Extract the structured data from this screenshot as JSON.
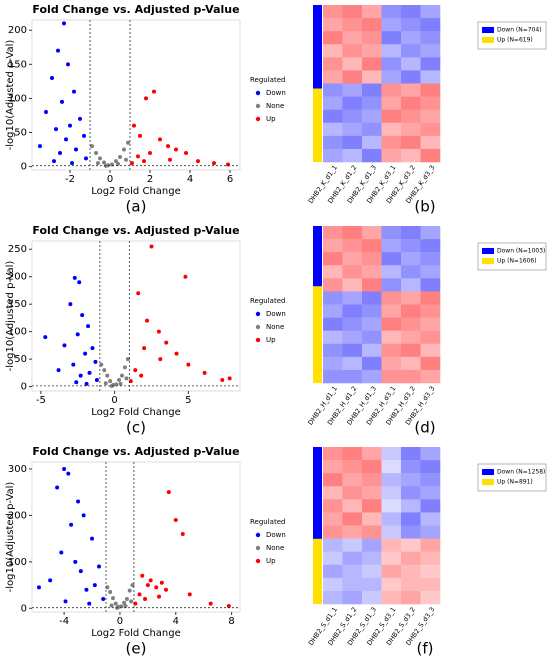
{
  "chart_data": [
    {
      "type": "volcano",
      "label": "(a)",
      "title": "Fold Change vs. Adjusted p-Value",
      "x_label": "Log2 Fold Change",
      "y_label": "-log10(Adjusted p-Val)",
      "xlim": [
        -3.9,
        6.5
      ],
      "xticks": [
        -2,
        0,
        2,
        4,
        6
      ],
      "ylim": [
        -5,
        215
      ],
      "yticks": [
        0,
        50,
        100,
        150,
        200
      ],
      "vlines": [
        -1,
        1
      ],
      "hline": 1.3,
      "legend_title": "Regulated",
      "series": [
        {
          "name": "Down",
          "color": "#0000ff",
          "x": [
            -2.3,
            -2.6,
            -2.1,
            -2.9,
            -1.8,
            -2.4,
            -3.2,
            -1.5,
            -2.0,
            -2.7,
            -1.3,
            -2.2,
            -3.5,
            -1.7,
            -2.5,
            -1.2,
            -2.8,
            -1.9
          ],
          "y": [
            210,
            170,
            150,
            130,
            110,
            95,
            80,
            70,
            60,
            55,
            45,
            40,
            30,
            25,
            20,
            12,
            8,
            5
          ]
        },
        {
          "name": "None",
          "color": "#808080",
          "x": [
            -0.9,
            -0.7,
            -0.5,
            -0.3,
            -0.1,
            0.1,
            0.3,
            0.5,
            0.7,
            0.9,
            -0.6,
            0.4,
            -0.2,
            0.8
          ],
          "y": [
            30,
            20,
            12,
            6,
            2,
            3,
            8,
            14,
            25,
            35,
            5,
            4,
            1,
            10
          ]
        },
        {
          "name": "Up",
          "color": "#ff0000",
          "x": [
            1.2,
            1.5,
            1.8,
            2.2,
            2.5,
            2.9,
            3.3,
            3.8,
            4.4,
            5.2,
            5.9,
            1.4,
            2.0,
            3.0,
            1.1,
            1.7
          ],
          "y": [
            60,
            45,
            100,
            110,
            40,
            30,
            25,
            20,
            8,
            5,
            3,
            15,
            20,
            10,
            5,
            8
          ]
        }
      ]
    },
    {
      "type": "heatmap",
      "label": "(b)",
      "columns": [
        "DHB2_K_d1_1",
        "DHB2_K_d1_2",
        "DHB2_K_d1_3",
        "DHB2_K_d3_1",
        "DHB2_K_d3_2",
        "DHB2_K_d3_3"
      ],
      "zlim": [
        -1,
        1
      ],
      "colors": [
        "#4a4aff",
        "#ffffff",
        "#ff4a4a"
      ],
      "groups": [
        {
          "name": "Down (N=704)",
          "color": "#0000ff",
          "n": 704
        },
        {
          "name": "Up (N=619)",
          "color": "#ffe000",
          "n": 619
        }
      ],
      "matrix": [
        [
          0.6,
          0.7,
          0.5,
          -0.6,
          -0.7,
          -0.5
        ],
        [
          0.5,
          0.6,
          0.7,
          -0.5,
          -0.6,
          -0.7
        ],
        [
          0.7,
          0.5,
          0.6,
          -0.7,
          -0.5,
          -0.6
        ],
        [
          0.4,
          0.6,
          0.5,
          -0.4,
          -0.6,
          -0.5
        ],
        [
          0.6,
          0.4,
          0.7,
          -0.6,
          -0.4,
          -0.7
        ],
        [
          0.5,
          0.7,
          0.4,
          -0.5,
          -0.7,
          -0.4
        ],
        [
          -0.6,
          -0.5,
          -0.7,
          0.6,
          0.5,
          0.7
        ],
        [
          -0.5,
          -0.7,
          -0.6,
          0.5,
          0.7,
          0.6
        ],
        [
          -0.7,
          -0.6,
          -0.5,
          0.7,
          0.6,
          0.5
        ],
        [
          -0.4,
          -0.5,
          -0.6,
          0.4,
          0.5,
          0.6
        ],
        [
          -0.6,
          -0.7,
          -0.4,
          0.6,
          0.7,
          0.4
        ],
        [
          -0.5,
          -0.4,
          -0.7,
          0.5,
          0.4,
          0.7
        ]
      ]
    },
    {
      "type": "volcano",
      "label": "(c)",
      "title": "Fold Change vs. Adjusted p-Value",
      "x_label": "Log2 Fold Change",
      "y_label": "-log10(Adjusted p-Val)",
      "xlim": [
        -5.6,
        8.5
      ],
      "xticks": [
        -5,
        0,
        5
      ],
      "ylim": [
        -8,
        265
      ],
      "yticks": [
        0,
        50,
        100,
        150,
        200,
        250
      ],
      "vlines": [
        -1,
        1
      ],
      "hline": 1.3,
      "legend_title": "Regulated",
      "series": [
        {
          "name": "Down",
          "color": "#0000ff",
          "x": [
            -2.7,
            -2.4,
            -3.0,
            -2.2,
            -1.8,
            -2.5,
            -3.4,
            -1.5,
            -2.0,
            -4.7,
            -1.3,
            -2.8,
            -3.8,
            -1.7,
            -2.3,
            -1.2,
            -2.6,
            -1.9
          ],
          "y": [
            198,
            190,
            150,
            130,
            110,
            95,
            75,
            70,
            60,
            90,
            45,
            40,
            30,
            25,
            20,
            12,
            8,
            5
          ]
        },
        {
          "name": "None",
          "color": "#808080",
          "x": [
            -0.9,
            -0.7,
            -0.5,
            -0.3,
            -0.1,
            0.1,
            0.3,
            0.5,
            0.7,
            0.9,
            -0.6,
            0.4,
            -0.2,
            0.8
          ],
          "y": [
            40,
            30,
            20,
            10,
            3,
            4,
            12,
            20,
            35,
            50,
            6,
            5,
            1,
            15
          ]
        },
        {
          "name": "Up",
          "color": "#ff0000",
          "x": [
            2.5,
            4.8,
            1.6,
            2.2,
            3.0,
            3.5,
            4.2,
            5.0,
            6.1,
            7.3,
            7.8,
            1.4,
            2.0,
            3.1,
            1.1,
            1.8
          ],
          "y": [
            255,
            200,
            170,
            120,
            100,
            80,
            60,
            40,
            25,
            12,
            15,
            30,
            70,
            50,
            10,
            20
          ]
        }
      ]
    },
    {
      "type": "heatmap",
      "label": "(d)",
      "columns": [
        "DHB2_H_d1_1",
        "DHB2_H_d1_2",
        "DHB2_H_d1_3",
        "DHB2_H_d3_1",
        "DHB2_H_d3_2",
        "DHB2_H_d3_3"
      ],
      "zlim": [
        -1,
        1
      ],
      "colors": [
        "#4a4aff",
        "#ffffff",
        "#ff4a4a"
      ],
      "groups": [
        {
          "name": "Down (N=1003)",
          "color": "#0000ff",
          "n": 1003
        },
        {
          "name": "Up (N=1606)",
          "color": "#ffe000",
          "n": 1606
        }
      ],
      "matrix": [
        [
          0.6,
          0.7,
          0.5,
          -0.6,
          -0.7,
          -0.5
        ],
        [
          0.5,
          0.6,
          0.7,
          -0.5,
          -0.6,
          -0.7
        ],
        [
          0.7,
          0.5,
          0.6,
          -0.7,
          -0.5,
          -0.6
        ],
        [
          0.4,
          0.6,
          0.5,
          -0.4,
          -0.6,
          -0.5
        ],
        [
          0.6,
          0.4,
          0.7,
          -0.6,
          -0.4,
          -0.7
        ],
        [
          -0.6,
          -0.5,
          -0.7,
          0.6,
          0.5,
          0.7
        ],
        [
          -0.5,
          -0.7,
          -0.6,
          0.5,
          0.7,
          0.6
        ],
        [
          -0.7,
          -0.6,
          -0.5,
          0.7,
          0.6,
          0.5
        ],
        [
          -0.4,
          -0.5,
          -0.6,
          0.4,
          0.5,
          0.6
        ],
        [
          -0.6,
          -0.7,
          -0.4,
          0.6,
          0.7,
          0.4
        ],
        [
          -0.5,
          -0.4,
          -0.7,
          0.5,
          0.4,
          0.7
        ],
        [
          -0.6,
          -0.6,
          -0.5,
          0.6,
          0.6,
          0.5
        ]
      ]
    },
    {
      "type": "volcano",
      "label": "(e)",
      "title": "Fold Change vs. Adjusted p-Value",
      "x_label": "Log2 Fold Change",
      "y_label": "-log10(Adjusted p-Val)",
      "xlim": [
        -6.3,
        8.6
      ],
      "xticks": [
        -4,
        0,
        4,
        8
      ],
      "ylim": [
        -8,
        315
      ],
      "yticks": [
        0,
        100,
        200,
        300
      ],
      "vlines": [
        -1,
        1
      ],
      "hline": 1.3,
      "legend_title": "Regulated",
      "series": [
        {
          "name": "Down",
          "color": "#0000ff",
          "x": [
            -4.0,
            -3.7,
            -4.5,
            -3.0,
            -2.6,
            -3.5,
            -5.8,
            -2.0,
            -4.2,
            -3.2,
            -1.5,
            -2.8,
            -5.0,
            -1.8,
            -2.4,
            -1.2,
            -3.9,
            -2.2
          ],
          "y": [
            300,
            290,
            260,
            230,
            200,
            180,
            45,
            150,
            120,
            100,
            90,
            80,
            60,
            50,
            40,
            20,
            15,
            10
          ]
        },
        {
          "name": "None",
          "color": "#808080",
          "x": [
            -0.9,
            -0.7,
            -0.5,
            -0.3,
            -0.1,
            0.1,
            0.3,
            0.5,
            0.7,
            0.9,
            -0.6,
            0.4,
            -0.2,
            0.8
          ],
          "y": [
            45,
            35,
            22,
            10,
            3,
            4,
            12,
            20,
            38,
            50,
            6,
            5,
            1,
            15
          ]
        },
        {
          "name": "Up",
          "color": "#ff0000",
          "x": [
            3.5,
            4.0,
            4.5,
            1.6,
            2.2,
            3.0,
            3.3,
            2.6,
            5.0,
            6.5,
            7.8,
            1.4,
            2.0,
            2.8,
            1.1,
            1.8
          ],
          "y": [
            250,
            190,
            160,
            70,
            60,
            55,
            40,
            45,
            30,
            10,
            5,
            30,
            50,
            25,
            10,
            20
          ]
        }
      ]
    },
    {
      "type": "heatmap",
      "label": "(f)",
      "columns": [
        "DHB2_S_d1_1",
        "DHB2_S_d1_2",
        "DHB2_S_d1_3",
        "DHB2_S_d3_1",
        "DHB2_S_d3_2",
        "DHB2_S_d3_3"
      ],
      "zlim": [
        -1,
        1
      ],
      "colors": [
        "#4a4aff",
        "#ffffff",
        "#ff4a4a"
      ],
      "groups": [
        {
          "name": "Down (N=1258)",
          "color": "#0000ff",
          "n": 1258
        },
        {
          "name": "Up (N=891)",
          "color": "#ffe000",
          "n": 891
        }
      ],
      "matrix": [
        [
          0.6,
          0.7,
          0.5,
          -0.3,
          -0.7,
          -0.5
        ],
        [
          0.5,
          0.6,
          0.7,
          -0.2,
          -0.6,
          -0.7
        ],
        [
          0.7,
          0.5,
          0.6,
          -0.4,
          -0.5,
          -0.6
        ],
        [
          0.4,
          0.6,
          0.5,
          -0.3,
          -0.6,
          -0.5
        ],
        [
          0.6,
          0.4,
          0.7,
          -0.2,
          -0.4,
          -0.7
        ],
        [
          0.5,
          0.7,
          0.4,
          -0.4,
          -0.7,
          -0.4
        ],
        [
          0.6,
          0.5,
          0.6,
          -0.3,
          -0.6,
          -0.5
        ],
        [
          -0.4,
          -0.3,
          -0.5,
          0.4,
          0.3,
          0.5
        ],
        [
          -0.3,
          -0.5,
          -0.4,
          0.3,
          0.5,
          0.4
        ],
        [
          -0.5,
          -0.4,
          -0.3,
          0.5,
          0.4,
          0.3
        ],
        [
          -0.3,
          -0.4,
          -0.4,
          0.3,
          0.4,
          0.4
        ],
        [
          -0.4,
          -0.5,
          -0.3,
          0.4,
          0.5,
          0.3
        ]
      ]
    }
  ]
}
